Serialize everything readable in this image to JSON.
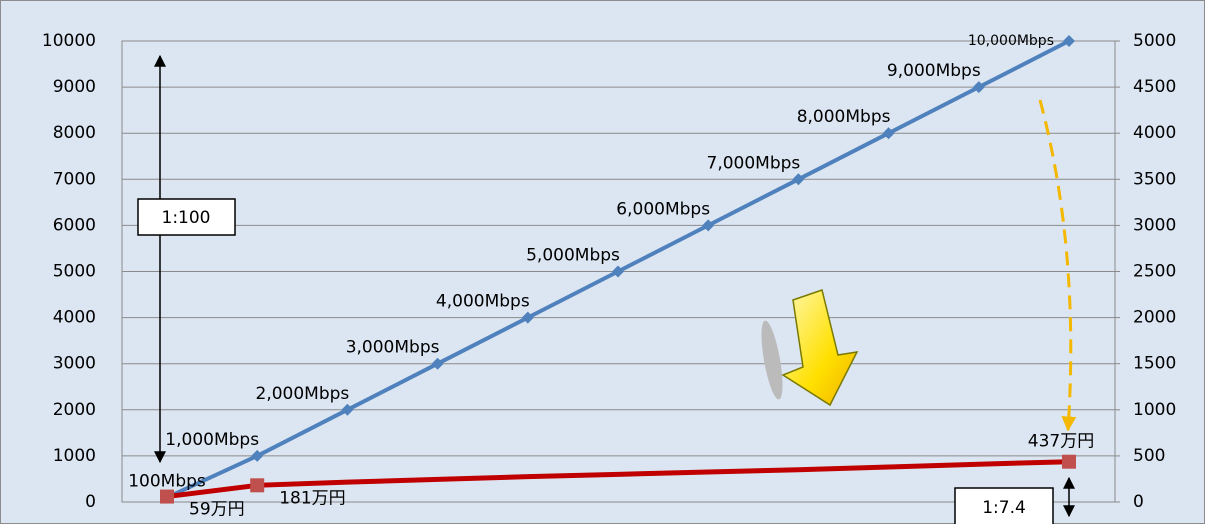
{
  "chart_data": {
    "type": "line",
    "categories": [
      null,
      null,
      null,
      null,
      null,
      null,
      null,
      null,
      null,
      null,
      null
    ],
    "series": [
      {
        "name": null,
        "color": "#4f81bd",
        "axis": "y",
        "values": [
          100,
          1000,
          2000,
          3000,
          4000,
          5000,
          6000,
          7000,
          8000,
          9000,
          10000
        ],
        "value_labels": [
          "100Mbps",
          "1,000Mbps",
          "2,000Mbps",
          "3,000Mbps",
          "4,000Mbps",
          "5,000Mbps",
          "6,000Mbps",
          "7,000Mbps",
          "8,000Mbps",
          "9,000Mbps",
          "10,000Mbps"
        ]
      },
      {
        "name": null,
        "color": "#c00000",
        "axis": "y2",
        "values": [
          59,
          181,
          215,
          245,
          275,
          300,
          325,
          350,
          380,
          410,
          437
        ],
        "value_labels": [
          "59万円",
          "181万円",
          null,
          null,
          null,
          null,
          null,
          null,
          null,
          null,
          "437万円"
        ]
      }
    ],
    "ylim": [
      0,
      10000
    ],
    "yticks": [
      0,
      1000,
      2000,
      3000,
      4000,
      5000,
      6000,
      7000,
      8000,
      9000,
      10000
    ],
    "y2lim": [
      0,
      5000
    ],
    "y2ticks": [
      0,
      500,
      1000,
      1500,
      2000,
      2500,
      3000,
      3500,
      4000,
      4500,
      5000
    ],
    "grid": true,
    "annotations": [
      "1:100",
      "1:7.4"
    ]
  }
}
